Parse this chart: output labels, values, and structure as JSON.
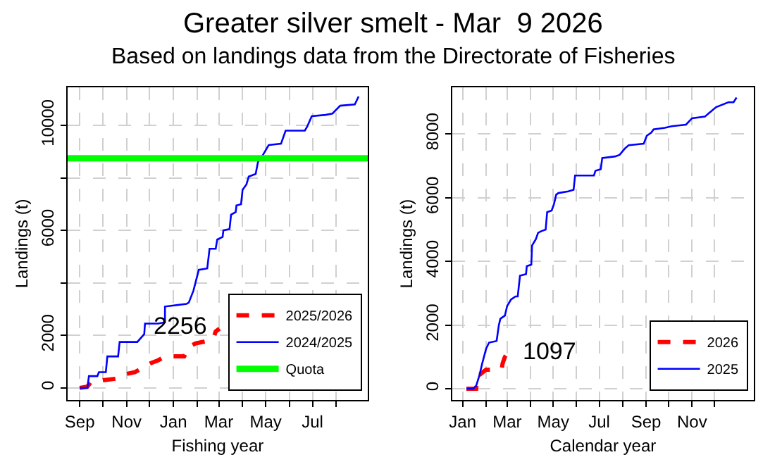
{
  "chart_data": [
    {
      "type": "line",
      "title": "Greater silver smelt - Mar  9 2026",
      "subtitle": "Based on landings data from the Directorate of Fisheries",
      "xlabel": "Fishing year",
      "ylabel": "Landings (t)",
      "xlim": [
        "2025-08-16",
        "2026-09-11"
      ],
      "xticks": [
        {
          "value": "2025-09-01",
          "label": "Sep"
        },
        {
          "value": "2025-10-01",
          "label": null
        },
        {
          "value": "2025-11-01",
          "label": "Nov"
        },
        {
          "value": "2025-12-01",
          "label": null
        },
        {
          "value": "2026-01-01",
          "label": "Jan"
        },
        {
          "value": "2026-02-01",
          "label": null
        },
        {
          "value": "2026-03-01",
          "label": "Mar"
        },
        {
          "value": "2026-04-01",
          "label": null
        },
        {
          "value": "2026-05-01",
          "label": "May"
        },
        {
          "value": "2026-06-01",
          "label": null
        },
        {
          "value": "2026-07-01",
          "label": "Jul"
        },
        {
          "value": "2026-08-01",
          "label": null
        }
      ],
      "ylim": [
        -460,
        11450
      ],
      "yticks": [
        0,
        2000,
        {
          "value": 4000,
          "label": null
        },
        6000,
        {
          "value": 8000,
          "label": null
        },
        10000
      ],
      "grid": true,
      "legend": "bottom right",
      "marker": "none",
      "series": [
        {
          "name": "2025/2026",
          "color": "#ff0000",
          "line_style": "dashed",
          "x": [
            "2025-09-01",
            "2025-09-11",
            "2025-09-15",
            "2025-09-24",
            "2025-10-03",
            "2025-10-18",
            "2025-10-27",
            "2025-11-12",
            "2025-11-24",
            "2025-12-03",
            "2025-12-12",
            "2025-12-21",
            "2026-01-06",
            "2026-01-15",
            "2026-01-21",
            "2026-01-30",
            "2026-02-17",
            "2026-02-22",
            "2026-02-25",
            "2026-03-02"
          ],
          "values": [
            0,
            50,
            200,
            250,
            300,
            350,
            500,
            600,
            800,
            950,
            1050,
            1200,
            1200,
            1200,
            1550,
            1700,
            1800,
            1900,
            2150,
            2256
          ],
          "value_labels": [
            null,
            null,
            null,
            null,
            null,
            null,
            null,
            null,
            null,
            null,
            null,
            null,
            null,
            null,
            null,
            null,
            null,
            null,
            null,
            "2256"
          ]
        },
        {
          "name": "2024/2025",
          "color": "#0000ff",
          "line_style": "solid",
          "x": [
            "2025-09-01",
            "2025-09-11",
            "2025-09-13",
            "2025-09-24",
            "2025-09-26",
            "2025-10-05",
            "2025-10-07",
            "2025-10-21",
            "2025-10-23",
            "2025-11-15",
            "2025-11-24",
            "2025-11-25",
            "2025-12-12",
            "2025-12-21",
            "2025-12-21",
            "2026-01-18",
            "2026-01-21",
            "2026-01-27",
            "2026-02-03",
            "2026-02-14",
            "2026-02-17",
            "2026-02-25",
            "2026-02-27",
            "2026-03-06",
            "2026-03-07",
            "2026-03-15",
            "2026-03-17",
            "2026-03-23",
            "2026-03-24",
            "2026-03-30",
            "2026-04-01",
            "2026-04-06",
            "2026-04-09",
            "2026-04-18",
            "2026-04-21",
            "2026-04-27",
            "2026-05-05",
            "2026-05-21",
            "2026-05-27",
            "2026-06-21",
            "2026-06-24",
            "2026-06-30",
            "2026-07-18",
            "2026-07-27",
            "2026-08-06",
            "2026-08-25",
            "2026-08-30"
          ],
          "values": [
            0,
            0,
            450,
            450,
            600,
            600,
            1200,
            1200,
            1750,
            1750,
            2050,
            2450,
            2450,
            2500,
            3100,
            3200,
            3250,
            3700,
            4500,
            4550,
            5300,
            5300,
            5650,
            5750,
            6000,
            6050,
            6600,
            6700,
            6950,
            7000,
            7550,
            7750,
            8050,
            8150,
            8600,
            8850,
            9250,
            9300,
            9800,
            9800,
            9950,
            10350,
            10400,
            10450,
            10750,
            10800,
            11100
          ]
        }
      ],
      "ref_lines": [
        {
          "axis": "y",
          "value": 8750,
          "label": "Quota",
          "color": "#00ff00",
          "line_style": "solid"
        }
      ]
    },
    {
      "type": "line",
      "xlabel": "Calendar year",
      "ylabel": "Landings (t)",
      "xlim": [
        "2025-12-18",
        "2027-01-22"
      ],
      "xticks": [
        {
          "value": "2026-01-01",
          "label": "Jan"
        },
        {
          "value": "2026-02-01",
          "label": null
        },
        {
          "value": "2026-03-01",
          "label": "Mar"
        },
        {
          "value": "2026-04-01",
          "label": null
        },
        {
          "value": "2026-05-01",
          "label": "May"
        },
        {
          "value": "2026-06-01",
          "label": null
        },
        {
          "value": "2026-07-01",
          "label": "Jul"
        },
        {
          "value": "2026-08-01",
          "label": null
        },
        {
          "value": "2026-09-01",
          "label": "Sep"
        },
        {
          "value": "2026-10-01",
          "label": null
        },
        {
          "value": "2026-11-01",
          "label": "Nov"
        },
        {
          "value": "2026-12-01",
          "label": null
        }
      ],
      "ylim": [
        -353,
        9471
      ],
      "yticks": [
        0,
        2000,
        4000,
        6000,
        8000
      ],
      "grid": true,
      "legend": "bottom right",
      "marker": "none",
      "series": [
        {
          "name": "2026",
          "color": "#ff0000",
          "line_style": "dashed",
          "x": [
            "2026-01-06",
            "2026-01-15",
            "2026-01-19",
            "2026-01-21",
            "2026-01-24",
            "2026-02-01",
            "2026-02-05",
            "2026-02-15",
            "2026-02-22",
            "2026-02-23",
            "2026-02-26",
            "2026-03-01",
            "2026-03-04"
          ],
          "values": [
            0,
            0,
            0,
            450,
            450,
            600,
            600,
            600,
            650,
            800,
            1000,
            1100,
            1097
          ],
          "value_labels": [
            null,
            null,
            null,
            null,
            null,
            null,
            null,
            null,
            null,
            null,
            null,
            null,
            "1097"
          ]
        },
        {
          "name": "2025",
          "color": "#0000ff",
          "line_style": "solid",
          "x": [
            "2026-01-06",
            "2026-01-15",
            "2026-01-19",
            "2026-01-23",
            "2026-01-27",
            "2026-02-01",
            "2026-02-05",
            "2026-02-15",
            "2026-02-18",
            "2026-02-20",
            "2026-02-26",
            "2026-03-01",
            "2026-03-06",
            "2026-03-12",
            "2026-03-15",
            "2026-03-18",
            "2026-03-26",
            "2026-03-27",
            "2026-04-02",
            "2026-04-03",
            "2026-04-08",
            "2026-04-11",
            "2026-04-15",
            "2026-04-21",
            "2026-04-23",
            "2026-04-29",
            "2026-05-02",
            "2026-05-05",
            "2026-05-08",
            "2026-05-21",
            "2026-05-28",
            "2026-05-30",
            "2026-06-24",
            "2026-06-26",
            "2026-07-03",
            "2026-07-05",
            "2026-07-22",
            "2026-07-28",
            "2026-08-04",
            "2026-08-09",
            "2026-08-29",
            "2026-09-02",
            "2026-09-08",
            "2026-09-11",
            "2026-09-26",
            "2026-10-05",
            "2026-10-24",
            "2026-11-01",
            "2026-11-18",
            "2026-11-23",
            "2026-12-03",
            "2026-12-19",
            "2026-12-26",
            "2026-12-30"
          ],
          "values": [
            0,
            0,
            100,
            400,
            800,
            1250,
            1450,
            1500,
            2000,
            2200,
            2300,
            2600,
            2800,
            2900,
            2900,
            3550,
            3600,
            3850,
            3900,
            4500,
            4700,
            4900,
            4950,
            5000,
            5550,
            5600,
            5800,
            6100,
            6150,
            6200,
            6250,
            6700,
            6700,
            6850,
            6900,
            7250,
            7300,
            7350,
            7550,
            7650,
            7700,
            7950,
            8050,
            8150,
            8200,
            8250,
            8300,
            8500,
            8550,
            8650,
            8850,
            9000,
            9000,
            9150
          ]
        }
      ]
    }
  ]
}
